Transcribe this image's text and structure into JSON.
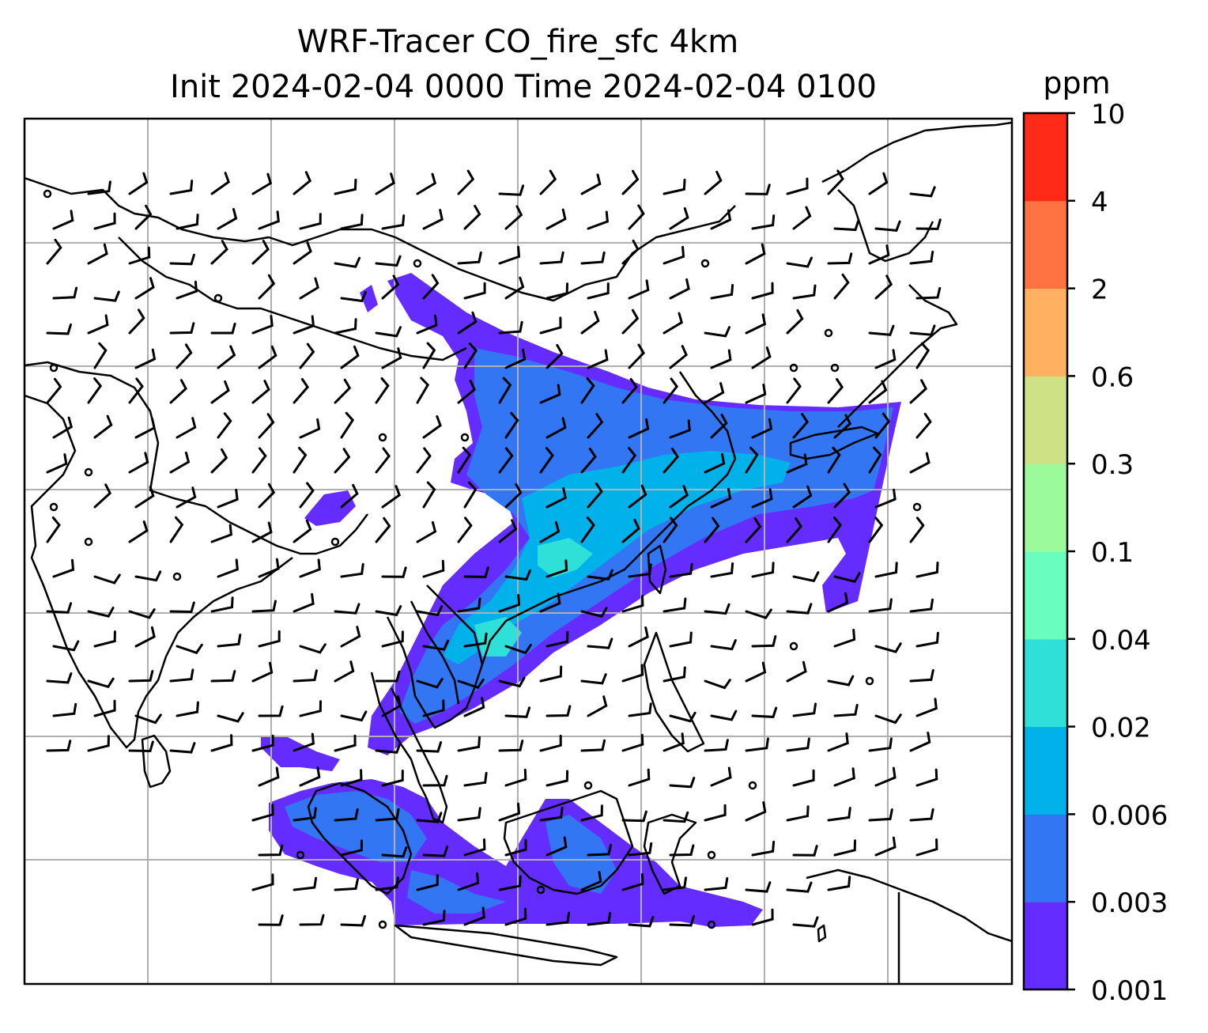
{
  "title": {
    "line1": "WRF-Tracer CO_fire_sfc 4km",
    "line2": "Init 2024-02-04 0000 Time 2024-02-04 0100"
  },
  "colorbar": {
    "unit_label": "ppm",
    "levels": [
      "0.001",
      "0.003",
      "0.006",
      "0.02",
      "0.04",
      "0.1",
      "0.3",
      "0.6",
      "2",
      "4",
      "10"
    ],
    "colors": [
      "#652cff",
      "#3276f4",
      "#00b1ea",
      "#2ee0d8",
      "#6afdc0",
      "#9bfb9a",
      "#cfe185",
      "#ffb060",
      "#ff7242",
      "#ff2a17"
    ]
  },
  "map": {
    "background": "#ffffff",
    "grid_color": "#b0b0b0",
    "coastline_color": "#000000",
    "plume_colors": {
      "lowest": "#652cff",
      "low": "#3276f4",
      "mid": "#00b1ea",
      "high": "#2ee0d8"
    },
    "wind_barb_color": "#000000"
  }
}
